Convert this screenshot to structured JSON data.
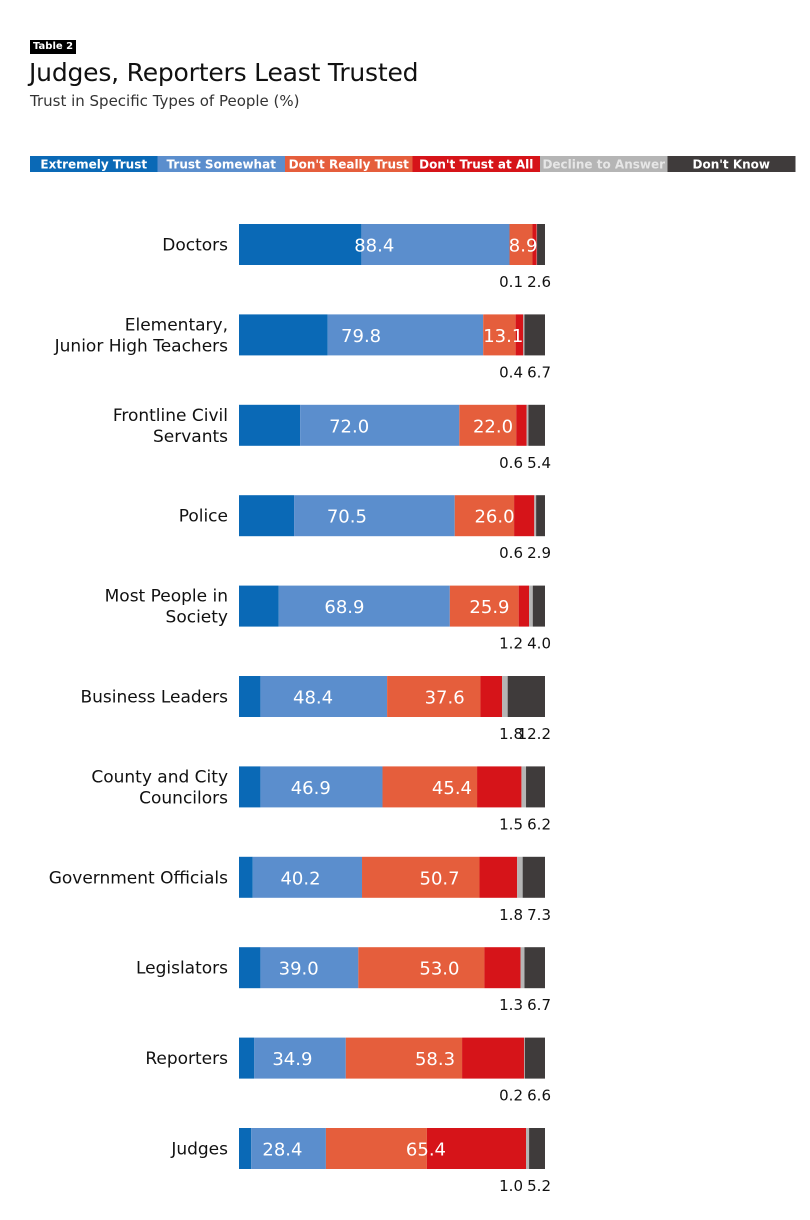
{
  "table_tag": "Table 2",
  "title": "Judges, Reporters Least Trusted",
  "subtitle": "Trust in Specific Types of People (%)",
  "chart_data": {
    "type": "bar",
    "stacked": true,
    "orientation": "horizontal",
    "unit": "%",
    "legend_position": "top",
    "categories": [
      [
        "Doctors"
      ],
      [
        "Elementary,",
        "Junior High Teachers"
      ],
      [
        "Frontline Civil",
        "Servants"
      ],
      [
        "Police"
      ],
      [
        "Most People in",
        "Society"
      ],
      [
        "Business Leaders"
      ],
      [
        "County and City",
        "Councilors"
      ],
      [
        "Government Officials"
      ],
      [
        "Legislators"
      ],
      [
        "Reporters"
      ],
      [
        "Judges"
      ]
    ],
    "series": [
      {
        "name": "Extremely Trust",
        "color": "#0a69b6",
        "values": [
          40.0,
          29.0,
          20.0,
          18.0,
          13.0,
          7.0,
          7.0,
          4.5,
          7.0,
          5.0,
          4.0
        ]
      },
      {
        "name": "Trust Somewhat",
        "color": "#5b8ecd",
        "values": [
          48.4,
          50.8,
          52.0,
          52.5,
          55.9,
          41.4,
          39.9,
          35.7,
          32.0,
          29.9,
          24.4
        ]
      },
      {
        "name": "Don't Really Trust",
        "color": "#e55e3c",
        "values": [
          7.5,
          10.6,
          18.6,
          19.4,
          22.5,
          30.5,
          30.9,
          38.4,
          41.2,
          38.0,
          33.0
        ]
      },
      {
        "name": "Don't Trust at All",
        "color": "#d61419",
        "values": [
          1.4,
          2.5,
          3.4,
          6.6,
          3.4,
          7.1,
          14.5,
          12.3,
          11.8,
          20.3,
          32.4
        ]
      },
      {
        "name": "Decline to Answer",
        "color": "#b5b5b5",
        "values": [
          0.1,
          0.4,
          0.6,
          0.6,
          1.2,
          1.8,
          1.5,
          1.8,
          1.3,
          0.2,
          1.0
        ]
      },
      {
        "name": "Don't Know",
        "color": "#3f3b3b",
        "values": [
          2.6,
          6.7,
          5.4,
          2.9,
          4.0,
          12.2,
          6.2,
          7.3,
          6.7,
          6.6,
          5.2
        ]
      }
    ],
    "trust_total_labels": [
      "88.4",
      "79.8",
      "72.0",
      "70.5",
      "68.9",
      "48.4",
      "46.9",
      "40.2",
      "39.0",
      "34.9",
      "28.4"
    ],
    "distrust_total_labels": [
      "8.9",
      "13.1",
      "22.0",
      "26.0",
      "25.9",
      "37.6",
      "45.4",
      "50.7",
      "53.0",
      "58.3",
      "65.4"
    ],
    "decline_labels": [
      "0.1",
      "0.4",
      "0.6",
      "0.6",
      "1.2",
      "1.8",
      "1.5",
      "1.8",
      "1.3",
      "0.2",
      "1.0"
    ],
    "dont_know_labels": [
      "2.6",
      "6.7",
      "5.4",
      "2.9",
      "4.0",
      "12.2",
      "6.2",
      "7.3",
      "6.7",
      "6.6",
      "5.2"
    ],
    "xlim": [
      0,
      100
    ]
  }
}
